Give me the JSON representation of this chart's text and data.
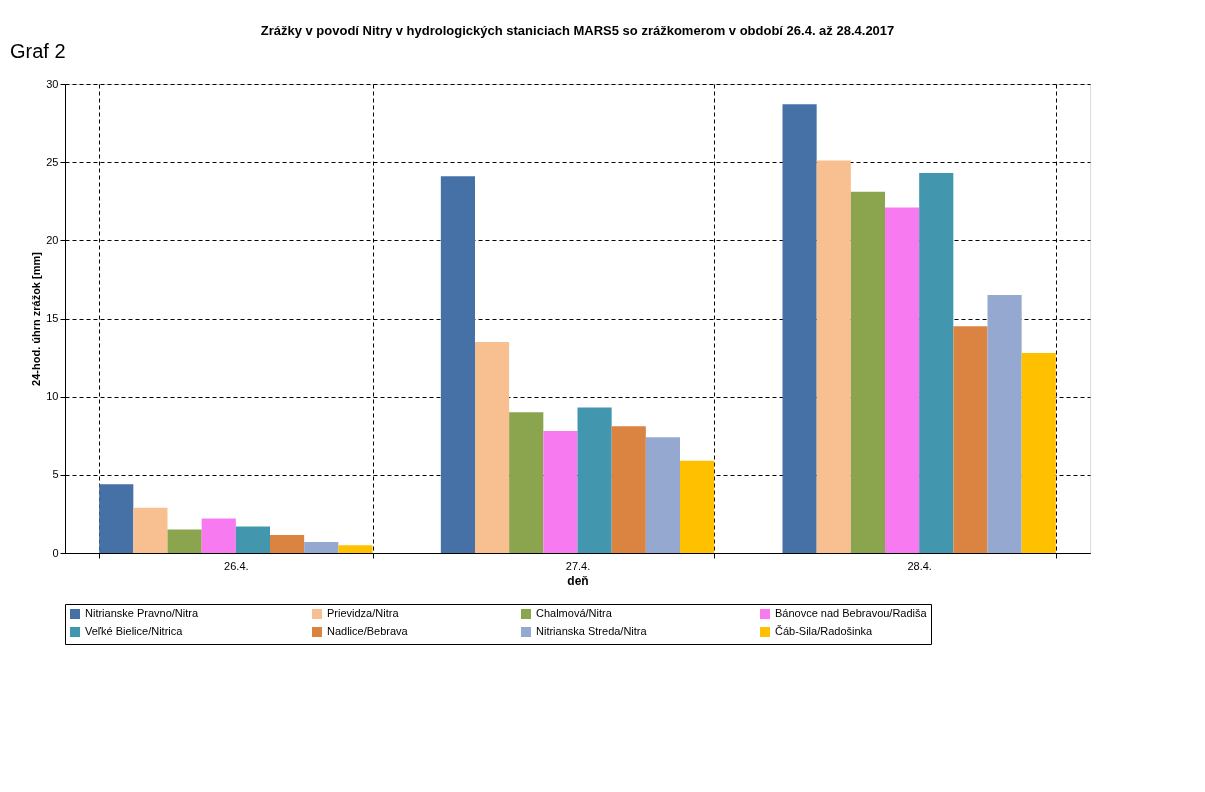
{
  "chart_data": {
    "type": "bar",
    "title": "Zrážky v povodí Nitry v hydrologických staniciach MARS5 so zrážkomerom v období 26.4.  až 28.4.2017",
    "xlabel": "deň",
    "ylabel": "24-hod. úhrn zrážok [mm]",
    "annotations": [
      "Graf 2"
    ],
    "categories": [
      "26.4.",
      "27.4.",
      "28.4."
    ],
    "series": [
      {
        "name": "Nitrianske Pravno/Nitra",
        "color": "#4571a6",
        "values": [
          4.4,
          24.1,
          28.7
        ]
      },
      {
        "name": "Prievidza/Nitra",
        "color": "#f8c090",
        "values": [
          2.9,
          13.5,
          25.1
        ]
      },
      {
        "name": "Chalmová/Nitra",
        "color": "#8aa54e",
        "values": [
          1.5,
          9.0,
          23.1
        ]
      },
      {
        "name": "Bánovce nad Bebravou/Radiša",
        "color": "#f87af0",
        "values": [
          2.2,
          7.8,
          22.1
        ]
      },
      {
        "name": "Veľké Bielice/Nitrica",
        "color": "#4297ae",
        "values": [
          1.7,
          9.3,
          24.3
        ]
      },
      {
        "name": "Nadlice/Bebrava",
        "color": "#db8340",
        "values": [
          1.15,
          8.1,
          14.5
        ]
      },
      {
        "name": "Nitrianska Streda/Nitra",
        "color": "#95a9d0",
        "values": [
          0.7,
          7.4,
          16.5
        ]
      },
      {
        "name": "Čáb-Sila/Radošinka",
        "color": "#ffc000",
        "values": [
          0.5,
          5.9,
          12.8
        ]
      }
    ],
    "ylim": [
      0,
      30
    ],
    "yticks": [
      0,
      5,
      10,
      15,
      20,
      25,
      30
    ],
    "grid": true,
    "legend": "bottom"
  }
}
